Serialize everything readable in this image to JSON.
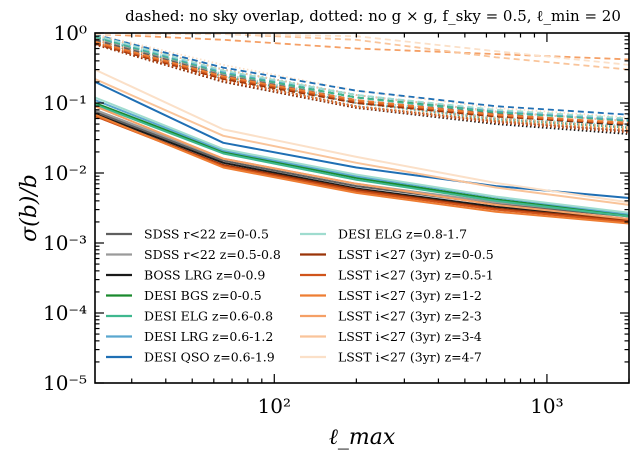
{
  "chart_data": {
    "type": "line",
    "title": "dashed: no sky overlap, dotted: no g × g, f_sky = 0.5, ℓ_min = 20",
    "xlabel": "ℓ_max",
    "ylabel": "σ(b)/b",
    "x_scale": "log",
    "y_scale": "log",
    "xlim": [
      22,
      2000
    ],
    "ylim": [
      1e-05,
      1
    ],
    "x_ticks": [
      {
        "value": 100,
        "label": "10²"
      },
      {
        "value": 1000,
        "label": "10³"
      }
    ],
    "y_ticks": [
      {
        "value": 1,
        "label": "10⁰"
      },
      {
        "value": 0.1,
        "label": "10⁻¹"
      },
      {
        "value": 0.01,
        "label": "10⁻²"
      },
      {
        "value": 0.001,
        "label": "10⁻³"
      },
      {
        "value": 0.0001,
        "label": "10⁻⁴"
      },
      {
        "value": 1e-05,
        "label": "10⁻⁵"
      }
    ],
    "grid": false,
    "legend_position": "lower-left",
    "x": [
      22,
      65,
      200,
      650,
      2000
    ],
    "series": [
      {
        "name": "SDSS r<22 z=0-0.5",
        "color": "#5f5f5f",
        "solid": [
          0.075,
          0.015,
          0.0065,
          0.0036,
          0.0024
        ],
        "dashed": [
          0.8,
          0.25,
          0.11,
          0.07,
          0.05
        ],
        "dotted": [
          0.8,
          0.22,
          0.09,
          0.055,
          0.04
        ]
      },
      {
        "name": "SDSS r<22 z=0.5-0.8",
        "color": "#9a9a9a",
        "solid": [
          0.08,
          0.016,
          0.007,
          0.0038,
          0.0025
        ],
        "dashed": [
          0.85,
          0.26,
          0.12,
          0.075,
          0.055
        ],
        "dotted": [
          0.85,
          0.24,
          0.1,
          0.06,
          0.045
        ]
      },
      {
        "name": "BOSS LRG z=0-0.9",
        "color": "#1a1a1a",
        "solid": [
          0.07,
          0.014,
          0.006,
          0.0033,
          0.0022
        ],
        "dashed": [
          0.75,
          0.23,
          0.1,
          0.065,
          0.048
        ],
        "dotted": [
          0.7,
          0.2,
          0.085,
          0.05,
          0.036
        ]
      },
      {
        "name": "DESI BGS z=0-0.5",
        "color": "#1a8a2e",
        "solid": [
          0.1,
          0.02,
          0.0085,
          0.0042,
          0.0025
        ],
        "dashed": [
          0.9,
          0.27,
          0.12,
          0.075,
          0.058
        ],
        "dotted": [
          0.9,
          0.24,
          0.1,
          0.06,
          0.045
        ]
      },
      {
        "name": "DESI ELG z=0.6-0.8",
        "color": "#3fb88f",
        "solid": [
          0.095,
          0.019,
          0.008,
          0.004,
          0.0024
        ],
        "dashed": [
          0.88,
          0.27,
          0.12,
          0.074,
          0.056
        ],
        "dotted": [
          0.88,
          0.24,
          0.1,
          0.058,
          0.044
        ]
      },
      {
        "name": "DESI LRG z=0.6-1.2",
        "color": "#5aa7cf",
        "solid": [
          0.11,
          0.021,
          0.009,
          0.0045,
          0.0026
        ],
        "dashed": [
          0.92,
          0.28,
          0.13,
          0.078,
          0.058
        ],
        "dotted": [
          0.9,
          0.25,
          0.1,
          0.06,
          0.046
        ]
      },
      {
        "name": "DESI QSO z=0.6-1.9",
        "color": "#1f6fb4",
        "solid": [
          0.2,
          0.027,
          0.012,
          0.0065,
          0.0044
        ],
        "dashed": [
          0.95,
          0.32,
          0.15,
          0.09,
          0.068
        ],
        "dotted": [
          0.95,
          0.3,
          0.13,
          0.075,
          0.055
        ]
      },
      {
        "name": "DESI ELG z=0.8-1.7",
        "color": "#9fdccf",
        "solid": [
          0.12,
          0.022,
          0.0095,
          0.0046,
          0.0027
        ],
        "dashed": [
          0.93,
          0.29,
          0.13,
          0.08,
          0.06
        ],
        "dotted": [
          0.92,
          0.26,
          0.11,
          0.062,
          0.047
        ]
      },
      {
        "name": "LSST i<27 (3yr) z=0-0.5",
        "color": "#9a3408",
        "solid": [
          0.065,
          0.013,
          0.0058,
          0.0031,
          0.0021
        ],
        "dashed": [
          0.7,
          0.22,
          0.1,
          0.064,
          0.05
        ],
        "dotted": [
          0.68,
          0.2,
          0.085,
          0.052,
          0.038
        ]
      },
      {
        "name": "LSST i<27 (3yr) z=0.5-1",
        "color": "#d0541b",
        "solid": [
          0.065,
          0.0125,
          0.0055,
          0.003,
          0.002
        ],
        "dashed": [
          0.72,
          0.23,
          0.105,
          0.066,
          0.05
        ],
        "dotted": [
          0.7,
          0.21,
          0.088,
          0.054,
          0.04
        ]
      },
      {
        "name": "LSST i<27 (3yr) z=1-2",
        "color": "#ee7d33",
        "solid": [
          0.068,
          0.012,
          0.0052,
          0.0028,
          0.0019
        ],
        "dashed": [
          0.75,
          0.24,
          0.11,
          0.068,
          0.052
        ],
        "dotted": [
          0.74,
          0.22,
          0.09,
          0.056,
          0.042
        ]
      },
      {
        "name": "LSST i<27 (3yr) z=2-3",
        "color": "#f5a066",
        "solid": [
          0.09,
          0.016,
          0.007,
          0.0035,
          0.0022
        ],
        "dashed": [
          1.0,
          0.8,
          0.6,
          0.5,
          0.42
        ],
        "dotted": [
          0.8,
          0.24,
          0.1,
          0.06,
          0.045
        ]
      },
      {
        "name": "LSST i<27 (3yr) z=3-4",
        "color": "#f9c49a",
        "solid": [
          0.22,
          0.034,
          0.014,
          0.0062,
          0.0035
        ],
        "dashed": [
          1.0,
          1.0,
          0.8,
          0.45,
          0.3
        ],
        "dotted": [
          0.95,
          0.3,
          0.13,
          0.075,
          0.055
        ]
      },
      {
        "name": "LSST i<27 (3yr) z=4-7",
        "color": "#fbe0c8",
        "solid": [
          0.3,
          0.042,
          0.017,
          0.0072,
          0.0038
        ],
        "dashed": [
          1.0,
          1.0,
          0.9,
          0.55,
          0.35
        ],
        "dotted": [
          1.0,
          0.35,
          0.15,
          0.085,
          0.062
        ]
      }
    ]
  }
}
